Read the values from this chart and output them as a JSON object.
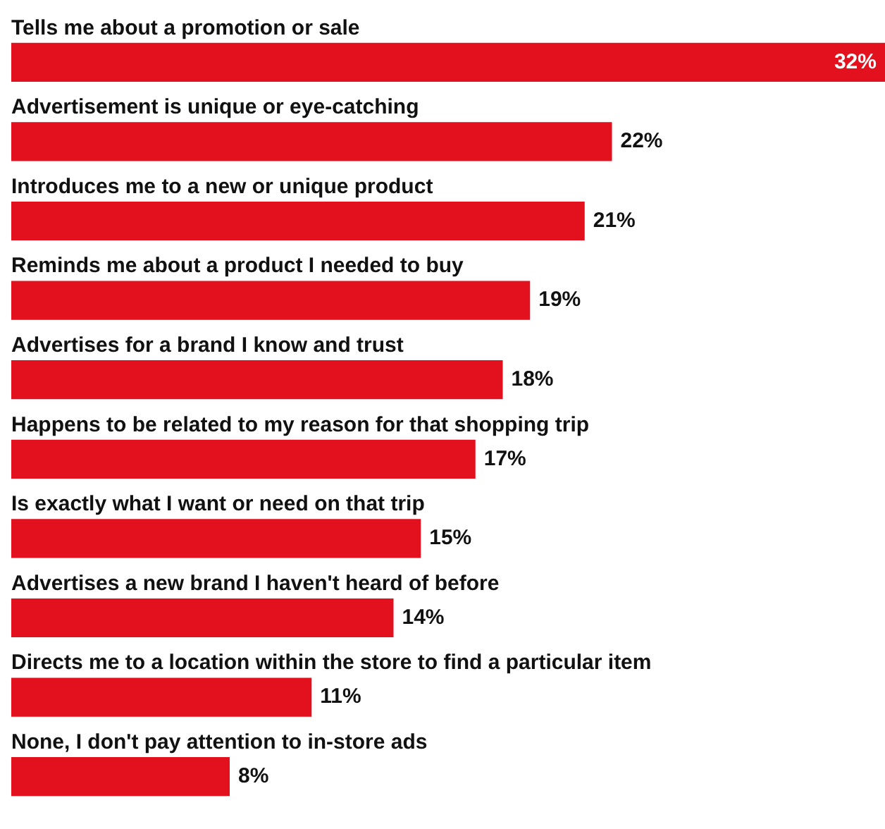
{
  "chart_data": {
    "type": "bar",
    "orientation": "horizontal",
    "categories": [
      "Tells me about a promotion or sale",
      "Advertisement is unique or eye-catching",
      "Introduces me to a new or unique product",
      "Reminds me about a product I needed to buy",
      "Advertises for a brand I know and trust",
      "Happens to be related to my reason for that shopping trip",
      "Is exactly what I want or need on that trip",
      "Advertises a new brand I haven't heard of before",
      "Directs me to a location within the store to find a particular item",
      "None, I don't pay attention to in-store ads"
    ],
    "values": [
      32,
      22,
      21,
      19,
      18,
      17,
      15,
      14,
      11,
      8
    ],
    "color": "#e3101d",
    "value_labels": [
      "32%",
      "22%",
      "21%",
      "19%",
      "18%",
      "17%",
      "15%",
      "14%",
      "11%",
      "8%"
    ],
    "tick_labels": "y",
    "grid": false,
    "legend": false
  }
}
